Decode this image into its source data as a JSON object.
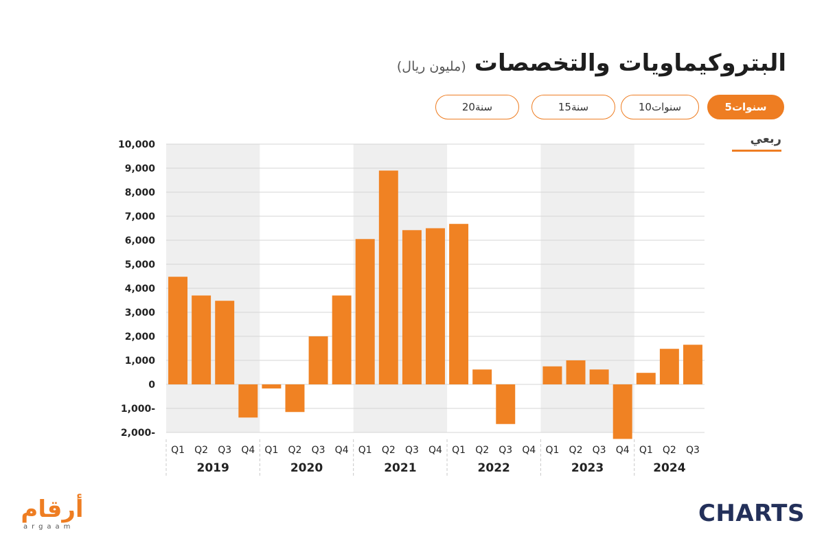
{
  "header": {
    "title": "البتروكيماويات والتخصصات",
    "unit": "(مليون ريال)"
  },
  "tabs": [
    {
      "label": "5سنوات",
      "active": true
    },
    {
      "label": "10سنوات",
      "active": false
    },
    {
      "label": "15سنة",
      "active": false
    },
    {
      "label": "20سنة",
      "active": false
    }
  ],
  "frequency_label": "ربعي",
  "logos": {
    "argaam_ar": "أرقام",
    "argaam_latin": "argaam",
    "charts": "CHARTS"
  },
  "colors": {
    "bar": "#F08223",
    "accent": "#EE7D22",
    "band": "#EFEFEF",
    "grid": "#D6D6D6",
    "brand_dark": "#23305A"
  },
  "chart_data": {
    "type": "bar",
    "title": "البتروكيماويات والتخصصات",
    "subtitle": "(مليون ريال)",
    "ylim": [
      -2000,
      10000
    ],
    "yticks": [
      {
        "value": 10000,
        "label": "10,000"
      },
      {
        "value": 9000,
        "label": "9,000"
      },
      {
        "value": 8000,
        "label": "8,000"
      },
      {
        "value": 7000,
        "label": "7,000"
      },
      {
        "value": 6000,
        "label": "6,000"
      },
      {
        "value": 5000,
        "label": "5,000"
      },
      {
        "value": 4000,
        "label": "4,000"
      },
      {
        "value": 3000,
        "label": "3,000"
      },
      {
        "value": 2000,
        "label": "2,000"
      },
      {
        "value": 1000,
        "label": "1,000"
      },
      {
        "value": 0,
        "label": "0"
      },
      {
        "value": -1000,
        "label": "1,000-"
      },
      {
        "value": -2000,
        "label": "2,000-"
      }
    ],
    "grid": true,
    "years": [
      {
        "year": "2019",
        "quarters": [
          "Q1",
          "Q2",
          "Q3",
          "Q4"
        ],
        "values": [
          4480,
          3700,
          3480,
          -1380
        ],
        "shaded": true
      },
      {
        "year": "2020",
        "quarters": [
          "Q1",
          "Q2",
          "Q3",
          "Q4"
        ],
        "values": [
          -170,
          -1150,
          2000,
          3700
        ],
        "shaded": false
      },
      {
        "year": "2021",
        "quarters": [
          "Q1",
          "Q2",
          "Q3",
          "Q4"
        ],
        "values": [
          6050,
          8900,
          6420,
          6500
        ],
        "shaded": true
      },
      {
        "year": "2022",
        "quarters": [
          "Q1",
          "Q2",
          "Q3",
          "Q4"
        ],
        "values": [
          6680,
          620,
          -1650,
          null
        ],
        "shaded": false
      },
      {
        "year": "2023",
        "quarters": [
          "Q1",
          "Q2",
          "Q3",
          "Q4"
        ],
        "values": [
          750,
          1000,
          620,
          -2270
        ],
        "shaded": true
      },
      {
        "year": "2024",
        "quarters": [
          "Q1",
          "Q2",
          "Q3"
        ],
        "values": [
          480,
          1480,
          1650
        ],
        "shaded": false
      }
    ]
  }
}
